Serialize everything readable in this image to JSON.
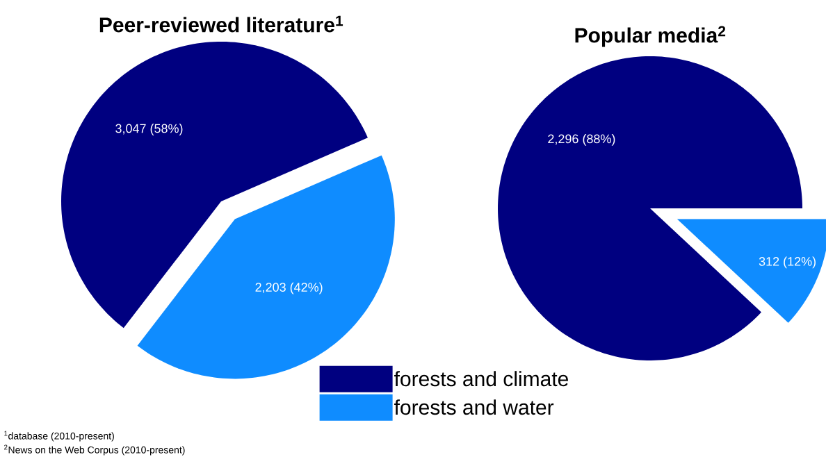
{
  "chart_data": [
    {
      "type": "pie",
      "title": "Peer-reviewed literature$^{1}$",
      "categories": [
        "forests and climate",
        "forests and water"
      ],
      "values": [
        3047,
        2203
      ],
      "colors": [
        "#000080",
        "#0f8cff"
      ],
      "value_labels": [
        "3,047 (58%)",
        "2,203 (42%)"
      ],
      "legend": "bottom right",
      "annotations": [
        "$^{1}$database (2010-present)",
        "$^{2}$News on the Web Corpus (2010-present)"
      ]
    },
    {
      "type": "pie",
      "title": "Popular media$^{2}$",
      "values": [
        2296,
        312
      ],
      "colors": [
        "#000080",
        "#0f8cff"
      ],
      "value_labels": [
        "2,296 (88%)",
        "312 (12%)"
      ]
    }
  ]
}
